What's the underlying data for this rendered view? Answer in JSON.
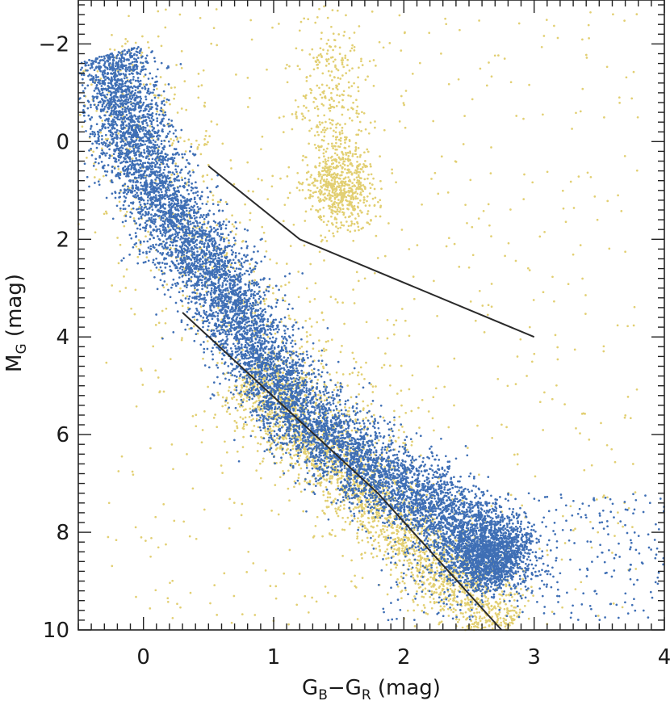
{
  "chart_data": {
    "type": "scatter",
    "title": "",
    "xlabel": {
      "main": "G",
      "sub1": "B",
      "dash": "−G",
      "sub2": "R",
      "unit": " (mag)"
    },
    "ylabel": {
      "main": "M",
      "sub": "G",
      "unit": " (mag)"
    },
    "xlim": [
      -0.5,
      4.0
    ],
    "ylim": [
      10.0,
      -2.9
    ],
    "y_inverted": true,
    "grid": false,
    "legend": "none",
    "x_ticks": [
      {
        "value": 0,
        "label": "0"
      },
      {
        "value": 1,
        "label": "1"
      },
      {
        "value": 2,
        "label": "2"
      },
      {
        "value": 3,
        "label": "3"
      },
      {
        "value": 4,
        "label": "4"
      }
    ],
    "y_ticks": [
      {
        "value": -2,
        "label": "−2"
      },
      {
        "value": 0,
        "label": "0"
      },
      {
        "value": 2,
        "label": "2"
      },
      {
        "value": 4,
        "label": "4"
      },
      {
        "value": 6,
        "label": "6"
      },
      {
        "value": 8,
        "label": "8"
      },
      {
        "value": 10,
        "label": "10"
      }
    ],
    "x_minor_step": 0.1,
    "y_minor_step": 0.2,
    "colors": {
      "blue": "#3f6fb5",
      "yellow": "#e2cf72",
      "line": "#2a2a2a"
    },
    "series": [
      {
        "color": "yellow",
        "components": [
          {
            "kind": "band",
            "path": [
              [
                0.8,
                4.7
              ],
              [
                1.0,
                5.4
              ],
              [
                1.3,
                6.2
              ],
              [
                1.6,
                6.9
              ],
              [
                1.9,
                7.7
              ],
              [
                2.2,
                8.5
              ],
              [
                2.5,
                9.3
              ],
              [
                2.8,
                10.0
              ]
            ],
            "spread": 0.3,
            "count": 2600
          },
          {
            "kind": "blob",
            "center": [
              1.5,
              0.9
            ],
            "sd": [
              0.13,
              0.45
            ],
            "count": 650
          },
          {
            "kind": "blob",
            "center": [
              1.45,
              -1.0
            ],
            "sd": [
              0.14,
              0.7
            ],
            "count": 250
          },
          {
            "kind": "band",
            "path": [
              [
                -0.3,
                -1.9
              ],
              [
                0.0,
                0.6
              ],
              [
                0.4,
                2.2
              ],
              [
                0.8,
                3.5
              ],
              [
                1.2,
                4.6
              ],
              [
                1.6,
                5.6
              ],
              [
                2.0,
                6.5
              ]
            ],
            "spread": 0.55,
            "count": 700
          },
          {
            "kind": "uniform",
            "x": [
              -0.3,
              3.8
            ],
            "y": [
              -2.8,
              10.0
            ],
            "count": 650
          }
        ]
      },
      {
        "color": "blue",
        "components": [
          {
            "kind": "band",
            "path": [
              [
                -0.25,
                -1.8
              ],
              [
                -0.15,
                -0.6
              ],
              [
                0.0,
                0.6
              ],
              [
                0.2,
                1.5
              ],
              [
                0.45,
                2.4
              ],
              [
                0.65,
                3.1
              ],
              [
                0.8,
                4.0
              ],
              [
                1.0,
                5.0
              ],
              [
                1.3,
                5.8
              ],
              [
                1.6,
                6.5
              ],
              [
                2.0,
                7.1
              ],
              [
                2.4,
                7.8
              ],
              [
                2.7,
                8.4
              ],
              [
                2.85,
                8.7
              ]
            ],
            "spread": 0.3,
            "count": 9000
          },
          {
            "kind": "blob",
            "center": [
              2.65,
              8.5
            ],
            "sd": [
              0.18,
              0.35
            ],
            "count": 1200
          },
          {
            "kind": "uniform",
            "x": [
              1.8,
              4.0
            ],
            "y": [
              7.2,
              9.8
            ],
            "count": 350
          }
        ]
      }
    ],
    "lines": [
      {
        "name": "upper-boundary",
        "points": [
          [
            0.5,
            0.5
          ],
          [
            1.2,
            2.0
          ],
          [
            3.0,
            4.0
          ]
        ]
      },
      {
        "name": "lower-boundary",
        "points": [
          [
            0.3,
            3.5
          ],
          [
            1.8,
            7.2
          ],
          [
            2.75,
            10.0
          ]
        ]
      }
    ]
  }
}
